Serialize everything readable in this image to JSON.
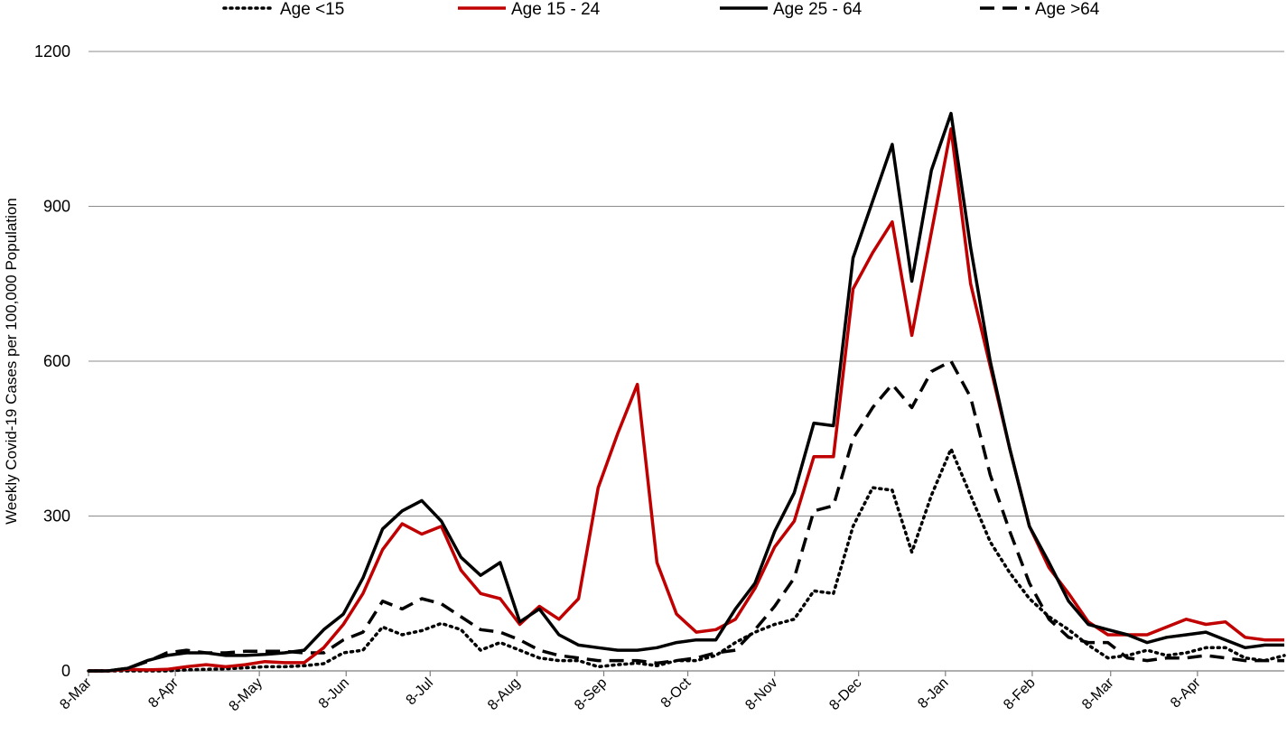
{
  "chart_data": {
    "type": "line",
    "title": "",
    "xlabel": "",
    "ylabel": "Weekly Covid-19 Cases per 100,000 Population",
    "ylim": [
      0,
      1200
    ],
    "yticks": [
      0,
      300,
      600,
      900,
      1200
    ],
    "grid": true,
    "legend_position": "top",
    "x": [
      "2020-03-08",
      "2020-03-15",
      "2020-03-22",
      "2020-03-29",
      "2020-04-05",
      "2020-04-12",
      "2020-04-19",
      "2020-04-26",
      "2020-05-03",
      "2020-05-10",
      "2020-05-17",
      "2020-05-24",
      "2020-05-31",
      "2020-06-07",
      "2020-06-14",
      "2020-06-21",
      "2020-06-28",
      "2020-07-05",
      "2020-07-12",
      "2020-07-19",
      "2020-07-26",
      "2020-08-02",
      "2020-08-09",
      "2020-08-16",
      "2020-08-23",
      "2020-08-30",
      "2020-09-06",
      "2020-09-13",
      "2020-09-20",
      "2020-09-27",
      "2020-10-04",
      "2020-10-11",
      "2020-10-18",
      "2020-10-25",
      "2020-11-01",
      "2020-11-08",
      "2020-11-15",
      "2020-11-22",
      "2020-11-29",
      "2020-12-06",
      "2020-12-13",
      "2020-12-20",
      "2020-12-27",
      "2021-01-03",
      "2021-01-10",
      "2021-01-17",
      "2021-01-24",
      "2021-01-31",
      "2021-02-07",
      "2021-02-14",
      "2021-02-21",
      "2021-02-28",
      "2021-03-07",
      "2021-03-14",
      "2021-03-21",
      "2021-03-28",
      "2021-04-04",
      "2021-04-11",
      "2021-04-18",
      "2021-04-25",
      "2021-05-02",
      "2021-05-09"
    ],
    "xticks": [
      {
        "date": "2020-03-08",
        "label": "8-Mar"
      },
      {
        "date": "2020-04-08",
        "label": "8-Apr"
      },
      {
        "date": "2020-05-08",
        "label": "8-May"
      },
      {
        "date": "2020-06-08",
        "label": "8-Jun"
      },
      {
        "date": "2020-07-08",
        "label": "8-Jul"
      },
      {
        "date": "2020-08-08",
        "label": "8-Aug"
      },
      {
        "date": "2020-09-08",
        "label": "8-Sep"
      },
      {
        "date": "2020-10-08",
        "label": "8-Oct"
      },
      {
        "date": "2020-11-08",
        "label": "8-Nov"
      },
      {
        "date": "2020-12-08",
        "label": "8-Dec"
      },
      {
        "date": "2021-01-08",
        "label": "8-Jan"
      },
      {
        "date": "2021-02-08",
        "label": "8-Feb"
      },
      {
        "date": "2021-03-08",
        "label": "8-Mar"
      },
      {
        "date": "2021-04-08",
        "label": "8-Apr"
      }
    ],
    "series": [
      {
        "name": "Age <15",
        "color": "#000000",
        "style": "dotted",
        "values": [
          0,
          0,
          0,
          0,
          0,
          2,
          3,
          4,
          6,
          8,
          8,
          10,
          14,
          35,
          40,
          85,
          70,
          78,
          92,
          80,
          40,
          55,
          40,
          25,
          20,
          20,
          8,
          12,
          15,
          10,
          20,
          20,
          30,
          55,
          75,
          90,
          100,
          155,
          150,
          280,
          355,
          350,
          230,
          340,
          430,
          340,
          250,
          190,
          140,
          105,
          80,
          50,
          25,
          30,
          40,
          30,
          35,
          45,
          45,
          25,
          20,
          30
        ]
      },
      {
        "name": "Age 15 - 24",
        "color": "#c00000",
        "style": "solid",
        "values": [
          0,
          0,
          3,
          2,
          3,
          8,
          12,
          8,
          12,
          18,
          16,
          16,
          45,
          90,
          150,
          235,
          285,
          265,
          280,
          195,
          150,
          140,
          90,
          125,
          100,
          140,
          355,
          460,
          555,
          210,
          110,
          75,
          80,
          100,
          160,
          240,
          290,
          415,
          415,
          740,
          810,
          870,
          650,
          850,
          1050,
          750,
          590,
          430,
          280,
          200,
          150,
          95,
          70,
          70,
          70,
          85,
          100,
          90,
          95,
          65,
          60,
          60
        ]
      },
      {
        "name": "Age 25 - 64",
        "color": "#000000",
        "style": "solid",
        "values": [
          0,
          0,
          5,
          20,
          30,
          35,
          35,
          30,
          30,
          32,
          35,
          40,
          80,
          110,
          180,
          275,
          310,
          330,
          290,
          220,
          185,
          210,
          95,
          120,
          70,
          50,
          45,
          40,
          40,
          45,
          55,
          60,
          60,
          120,
          170,
          270,
          345,
          480,
          475,
          800,
          910,
          1020,
          755,
          970,
          1080,
          820,
          600,
          430,
          280,
          210,
          135,
          90,
          80,
          70,
          55,
          65,
          70,
          75,
          60,
          45,
          50,
          50
        ]
      },
      {
        "name": "Age >64",
        "color": "#000000",
        "style": "dashed",
        "values": [
          0,
          0,
          5,
          18,
          35,
          40,
          35,
          35,
          38,
          38,
          38,
          35,
          35,
          60,
          75,
          135,
          120,
          140,
          130,
          105,
          80,
          75,
          60,
          40,
          30,
          25,
          20,
          20,
          20,
          15,
          20,
          25,
          35,
          40,
          80,
          125,
          180,
          310,
          320,
          450,
          510,
          555,
          510,
          580,
          600,
          530,
          380,
          270,
          170,
          100,
          65,
          55,
          55,
          25,
          20,
          25,
          25,
          30,
          25,
          20,
          20,
          20
        ]
      }
    ]
  }
}
